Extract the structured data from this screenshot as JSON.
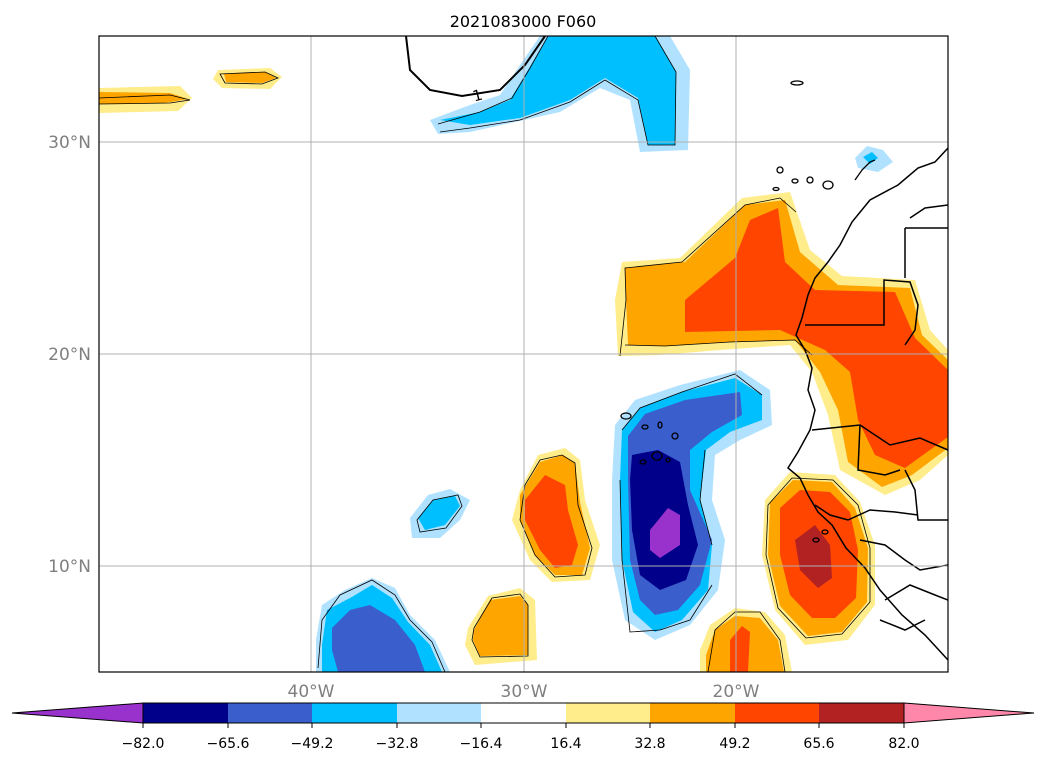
{
  "title": "2021083000 F060",
  "map": {
    "lat_labels": [
      "30°N",
      "20°N",
      "10°N"
    ],
    "lon_labels": [
      "40°W",
      "30°W",
      "20°W"
    ],
    "contour_label": "1",
    "frame_color": "#000000",
    "grid_color": "#b0b0b0",
    "coast_color": "#000000"
  },
  "colorbar": {
    "tick_labels": [
      "−82.0",
      "−65.6",
      "−49.2",
      "−32.8",
      "−16.4",
      "16.4",
      "32.8",
      "49.2",
      "65.6",
      "82.0"
    ],
    "under_color": "#9932cc",
    "over_color": "#ff88aa",
    "colors": [
      "#00008b",
      "#3a5fcd",
      "#00bfff",
      "#b0e2ff",
      "#ffffff",
      "#ffec8b",
      "#ffa500",
      "#ff4500",
      "#b22222"
    ]
  },
  "palette": {
    "n82": "#9932cc",
    "n66": "#00008b",
    "n49": "#3a5fcd",
    "n33": "#00bfff",
    "n16": "#b0e2ff",
    "p16": "#ffec8b",
    "p33": "#ffa500",
    "p49": "#ff4500",
    "p66": "#b22222"
  }
}
